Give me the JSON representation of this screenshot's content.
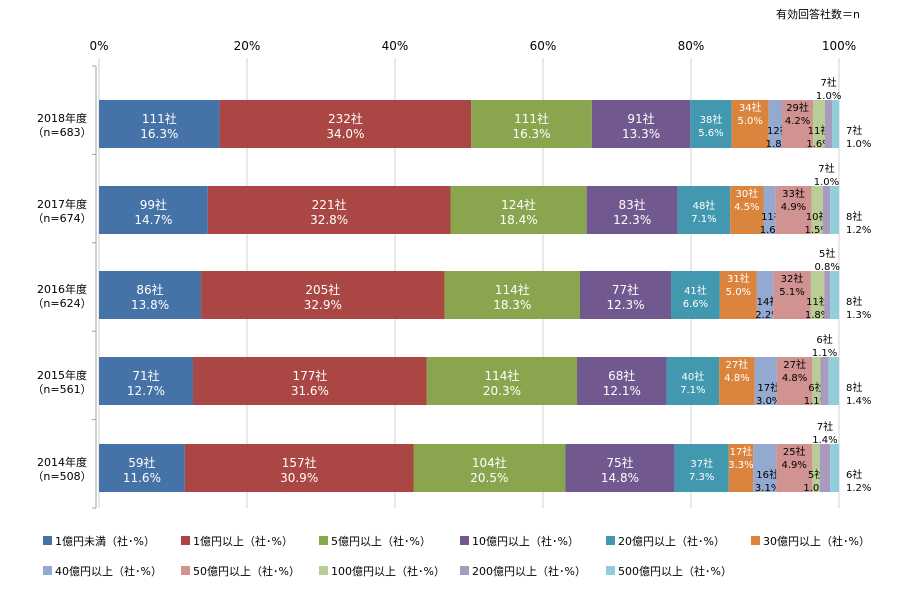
{
  "note": "有効回答社数＝n",
  "chart_data": {
    "type": "bar",
    "orientation": "horizontal",
    "stacked": true,
    "percent_stacked": true,
    "xlim": [
      0,
      100
    ],
    "x_ticks": [
      "0%",
      "20%",
      "40%",
      "60%",
      "80%",
      "100%"
    ],
    "grid": true,
    "legend_position": "bottom",
    "categories": [
      "2018年度\n（n=683）",
      "2017年度\n（n=674）",
      "2016年度\n（n=624）",
      "2015年度\n（n=561）",
      "2014年度\n（n=508）"
    ],
    "series": [
      {
        "name": "1億円未満（社･%）",
        "color": "#4572A7",
        "counts": [
          "111社",
          "99社",
          "86社",
          "71社",
          "59社"
        ],
        "values": [
          16.3,
          14.7,
          13.8,
          12.7,
          11.6
        ]
      },
      {
        "name": "1億円以上（社･%）",
        "color": "#AA4643",
        "counts": [
          "232社",
          "221社",
          "205社",
          "177社",
          "157社"
        ],
        "values": [
          34.0,
          32.8,
          32.9,
          31.6,
          30.9
        ]
      },
      {
        "name": "5億円以上（社･%）",
        "color": "#89A54E",
        "counts": [
          "111社",
          "124社",
          "114社",
          "114社",
          "104社"
        ],
        "values": [
          16.3,
          18.4,
          18.3,
          20.3,
          20.5
        ]
      },
      {
        "name": "10億円以上（社･%）",
        "color": "#71588F",
        "counts": [
          "91社",
          "83社",
          "77社",
          "68社",
          "75社"
        ],
        "values": [
          13.3,
          12.3,
          12.3,
          12.1,
          14.8
        ]
      },
      {
        "name": "20億円以上（社･%）",
        "color": "#4198AF",
        "counts": [
          "38社",
          "48社",
          "41社",
          "40社",
          "37社"
        ],
        "values": [
          5.6,
          7.1,
          6.6,
          7.1,
          7.3
        ]
      },
      {
        "name": "30億円以上（社･%）",
        "color": "#DB843D",
        "counts": [
          "34社",
          "30社",
          "31社",
          "27社",
          "17社"
        ],
        "values": [
          5.0,
          4.5,
          5.0,
          4.8,
          3.3
        ]
      },
      {
        "name": "40億円以上（社･%）",
        "color": "#93A9CF",
        "counts": [
          "12社",
          "11社",
          "14社",
          "17社",
          "16社"
        ],
        "values": [
          1.8,
          1.6,
          2.2,
          3.0,
          3.1
        ]
      },
      {
        "name": "50億円以上（社･%）",
        "color": "#D19392",
        "counts": [
          "29社",
          "33社",
          "32社",
          "27社",
          "25社"
        ],
        "values": [
          4.2,
          4.9,
          5.1,
          4.8,
          4.9
        ]
      },
      {
        "name": "100億円以上（社･%）",
        "color": "#B9CD96",
        "counts": [
          "11社",
          "10社",
          "11社",
          "6社",
          "5社"
        ],
        "values": [
          1.6,
          1.5,
          1.8,
          1.1,
          1.0
        ]
      },
      {
        "name": "200億円以上（社･%）",
        "color": "#A99BBD",
        "counts": [
          "7社",
          "7社",
          "5社",
          "6社",
          "7社"
        ],
        "values": [
          1.0,
          1.0,
          0.8,
          1.1,
          1.4
        ]
      },
      {
        "name": "500億円以上（社･%）",
        "color": "#92CDDC",
        "counts": [
          "7社",
          "8社",
          "8社",
          "8社",
          "6社"
        ],
        "values": [
          1.0,
          1.2,
          1.3,
          1.4,
          1.2
        ]
      }
    ]
  }
}
